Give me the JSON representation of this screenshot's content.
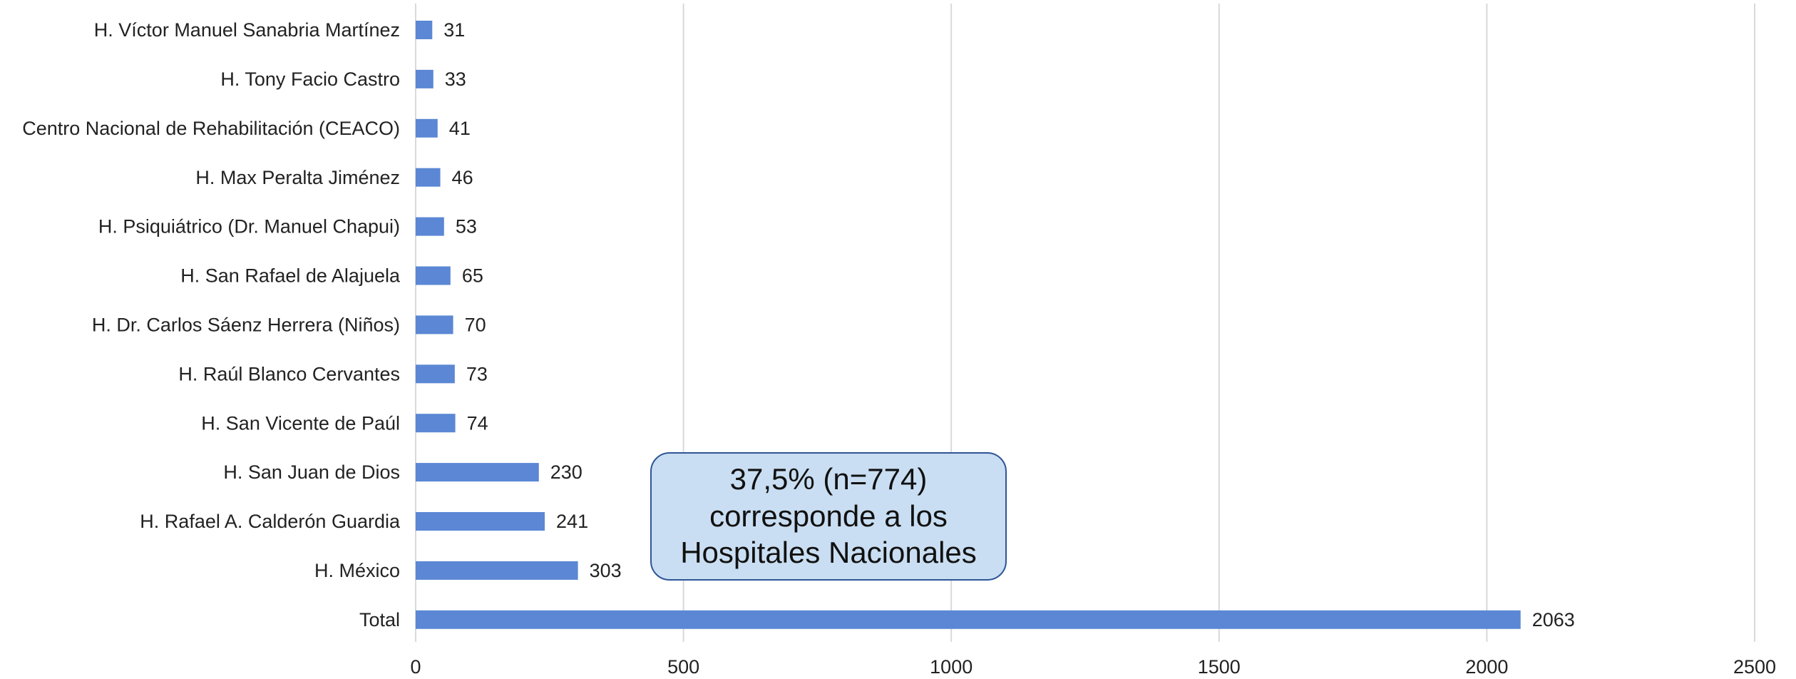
{
  "chart_data": {
    "type": "bar",
    "orientation": "horizontal",
    "categories": [
      "H. Víctor Manuel Sanabria Martínez",
      "H. Tony Facio Castro",
      "Centro Nacional de Rehabilitación (CEACO)",
      "H. Max Peralta Jiménez",
      "H. Psiquiátrico (Dr. Manuel Chapui)",
      "H. San Rafael de Alajuela",
      "H. Dr. Carlos Sáenz Herrera (Niños)",
      "H. Raúl Blanco Cervantes",
      "H. San Vicente de Paúl",
      "H. San Juan de Dios",
      "H. Rafael A. Calderón Guardia",
      "H. México",
      "Total"
    ],
    "values": [
      31,
      33,
      41,
      46,
      53,
      65,
      70,
      73,
      74,
      230,
      241,
      303,
      2063
    ],
    "color": "#5b87d4",
    "xlim": [
      0,
      2500
    ],
    "xticks": [
      0,
      500,
      1000,
      1500,
      2000,
      2500
    ],
    "grid": true,
    "annotation": [
      "37,5% (n=774)",
      "corresponde a los",
      "Hospitales Nacionales"
    ]
  }
}
